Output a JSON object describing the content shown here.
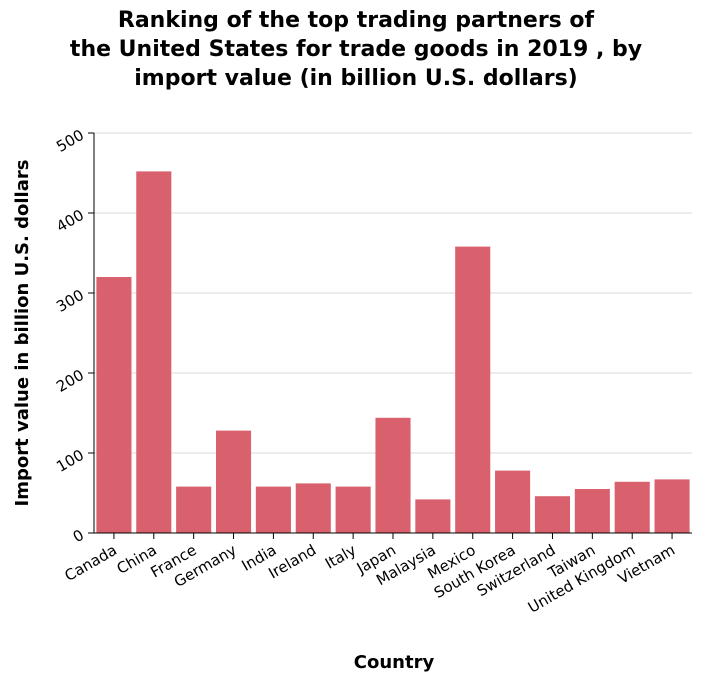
{
  "chart_data": {
    "type": "bar",
    "title": "Ranking of the top trading partners of the United States for trade goods in 2019 , by import value (in billion U.S. dollars)",
    "xlabel": "Country",
    "ylabel": "Import value in billion U.S. dollars",
    "categories": [
      "Canada",
      "China",
      "France",
      "Germany",
      "India",
      "Ireland",
      "Italy",
      "Japan",
      "Malaysia",
      "Mexico",
      "South Korea",
      "Switzerland",
      "Taiwan",
      "United Kingdom",
      "Vietnam"
    ],
    "values": [
      320,
      452,
      58,
      128,
      58,
      62,
      58,
      144,
      42,
      358,
      78,
      46,
      55,
      64,
      67
    ],
    "yticks": [
      "0",
      "100",
      "200",
      "300",
      "400",
      "500"
    ],
    "ylim": [
      0,
      500
    ],
    "grid": true,
    "bar_color": "#d9606d",
    "grid_color": "#d9d9d9"
  }
}
